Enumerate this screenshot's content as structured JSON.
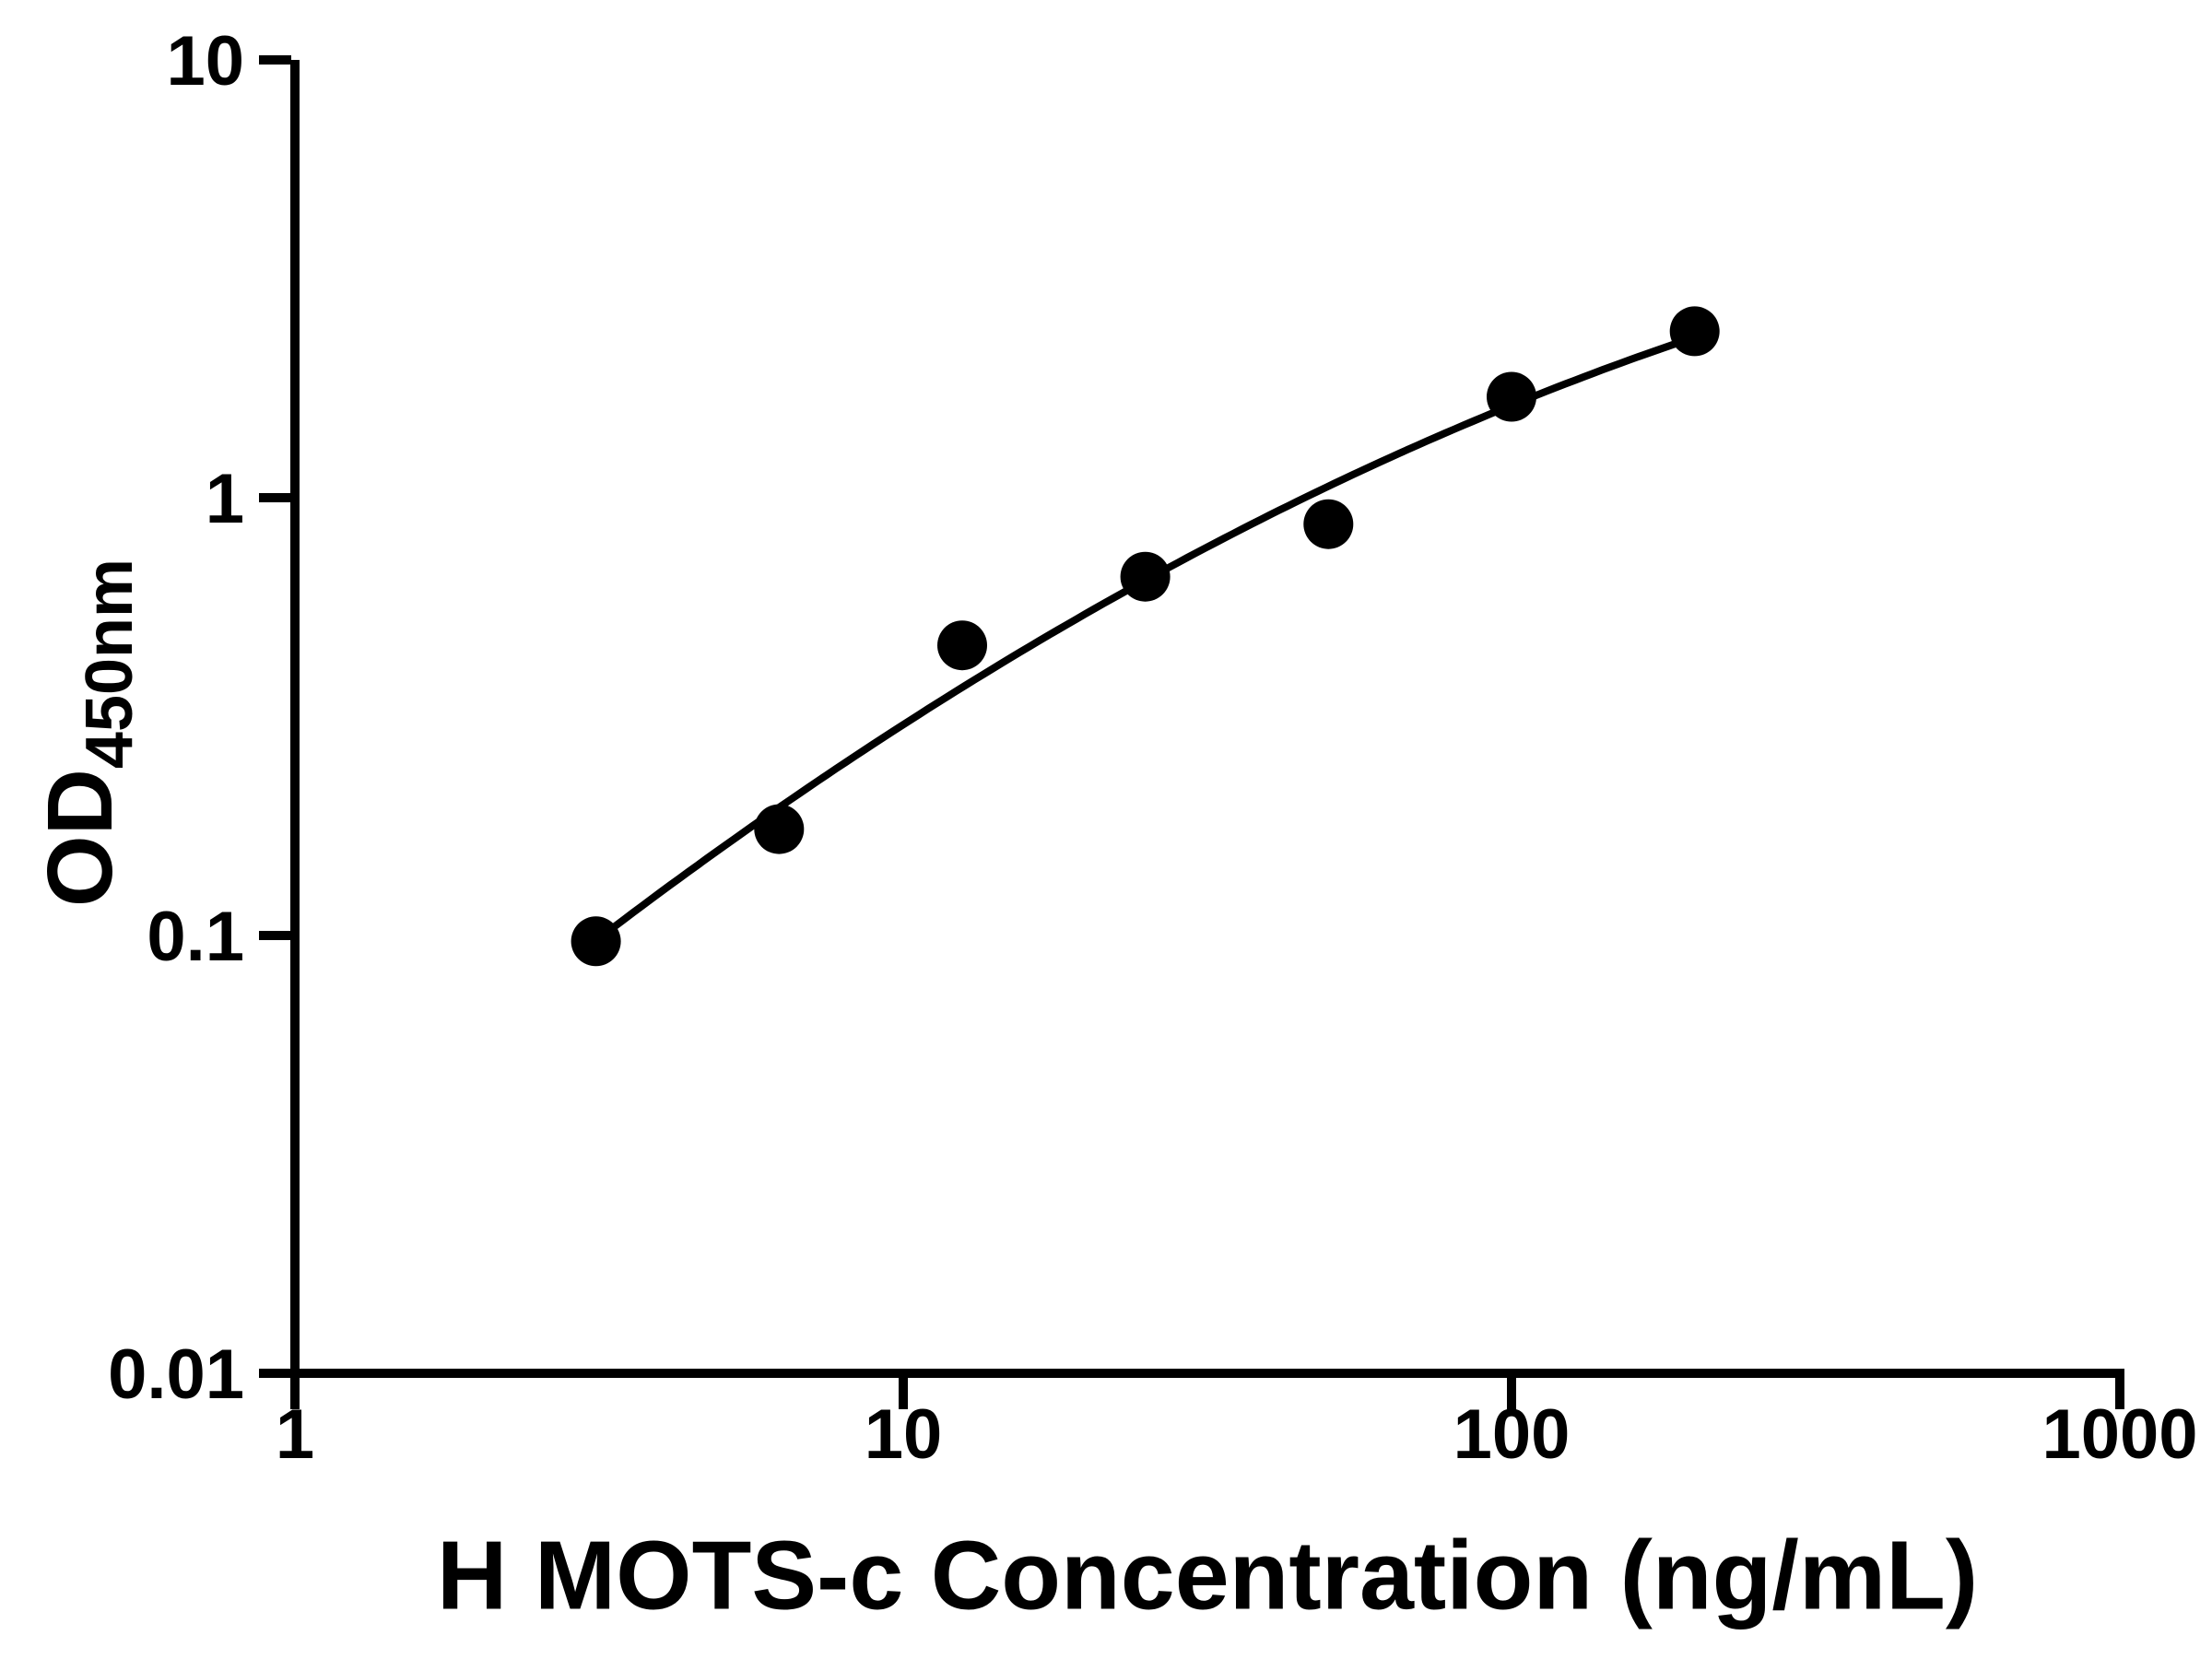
{
  "figure": {
    "background": "#ffffff",
    "foreground": "#000000"
  },
  "chart_data": {
    "type": "scatter",
    "title": "",
    "xlabel": "H MOTS-c Concentration (ng/mL)",
    "ylabel_main": "OD",
    "ylabel_sub": "450nm",
    "x_scale": "log",
    "y_scale": "log",
    "xlim": [
      1,
      1000
    ],
    "ylim": [
      0.01,
      10
    ],
    "x_ticks": [
      1,
      10,
      100,
      1000
    ],
    "x_tick_labels": [
      "1",
      "10",
      "100",
      "1000"
    ],
    "y_ticks": [
      0.01,
      0.1,
      1,
      10
    ],
    "y_tick_labels": [
      "0.01",
      "0.1",
      "1",
      "10"
    ],
    "series": [
      {
        "name": "standard-curve-points",
        "x": [
          3.125,
          6.25,
          12.5,
          25,
          50,
          100,
          200
        ],
        "y": [
          0.097,
          0.175,
          0.46,
          0.66,
          0.87,
          1.7,
          2.4
        ]
      }
    ],
    "fit_curve": true,
    "grid": false,
    "legend": null,
    "marker_color": "#000000",
    "line_color": "#000000",
    "axis_color": "#000000"
  }
}
